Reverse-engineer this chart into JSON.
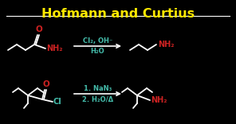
{
  "background_color": "#000000",
  "title": "Hofmann and Curtius",
  "title_color": "#FFE800",
  "title_fontsize": 11.5,
  "white_color": "#FFFFFF",
  "red_color": "#CC2222",
  "green_color": "#44BBAA",
  "yellow_color": "#FFE800",
  "row1": {
    "reagent_above": "Cl₂, OH⁻",
    "reagent_below": "H₂O",
    "reagent_color": "#44BBAA"
  },
  "row2": {
    "reagent_above": "1. NaN₃",
    "reagent_below": "2. H₂O/Δ",
    "reagent_color": "#44BBAA"
  }
}
